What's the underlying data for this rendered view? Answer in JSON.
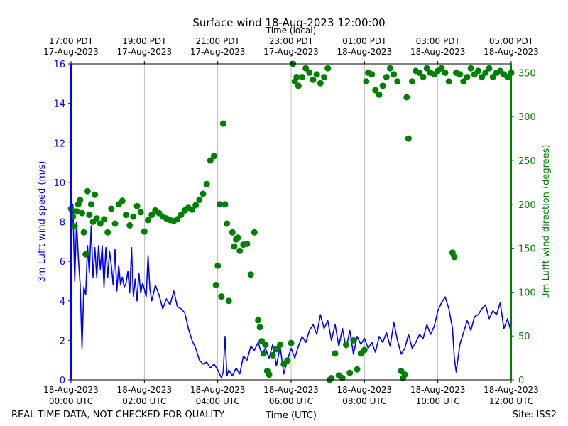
{
  "chart_data": {
    "type": "line",
    "title": "Surface wind 18-Aug-2023 12:00:00",
    "top_axis_label": "Time (local)",
    "bottom_axis_label": "Time (UTC)",
    "footer_left": "REAL TIME DATA, NOT CHECKED FOR QUALITY",
    "footer_right": "Site: ISS2",
    "x_range_hours_utc": [
      0,
      12
    ],
    "x_ticks_utc": [
      {
        "hour": 0,
        "line1": "18-Aug-2023",
        "line2": "00:00 UTC"
      },
      {
        "hour": 2,
        "line1": "18-Aug-2023",
        "line2": "02:00 UTC"
      },
      {
        "hour": 4,
        "line1": "18-Aug-2023",
        "line2": "04:00 UTC"
      },
      {
        "hour": 6,
        "line1": "18-Aug-2023",
        "line2": "06:00 UTC"
      },
      {
        "hour": 8,
        "line1": "18-Aug-2023",
        "line2": "08:00 UTC"
      },
      {
        "hour": 10,
        "line1": "18-Aug-2023",
        "line2": "10:00 UTC"
      },
      {
        "hour": 12,
        "line1": "18-Aug-2023",
        "line2": "12:00 UTC"
      }
    ],
    "x_ticks_local": [
      {
        "hour": 0,
        "line1": "17:00 PDT",
        "line2": "17-Aug-2023"
      },
      {
        "hour": 2,
        "line1": "19:00 PDT",
        "line2": "17-Aug-2023"
      },
      {
        "hour": 4,
        "line1": "21:00 PDT",
        "line2": "17-Aug-2023"
      },
      {
        "hour": 6,
        "line1": "23:00 PDT",
        "line2": "17-Aug-2023"
      },
      {
        "hour": 8,
        "line1": "01:00 PDT",
        "line2": "18-Aug-2023"
      },
      {
        "hour": 10,
        "line1": "03:00 PDT",
        "line2": "18-Aug-2023"
      },
      {
        "hour": 12,
        "line1": "05:00 PDT",
        "line2": "18-Aug-2023"
      }
    ],
    "left_axis": {
      "label": "3m Lufft wind speed (m/s)",
      "range": [
        0,
        16
      ],
      "ticks": [
        "0",
        "2",
        "4",
        "6",
        "8",
        "10",
        "12",
        "14",
        "16"
      ],
      "color": "#0000ff"
    },
    "right_axis": {
      "label": "3m Lufft wind direction (degrees)",
      "range": [
        0,
        360
      ],
      "ticks": [
        "0",
        "50",
        "100",
        "150",
        "200",
        "250",
        "300",
        "350"
      ],
      "color": "#008000"
    },
    "series": [
      {
        "name": "3m Lufft wind speed",
        "style": "line",
        "color": "#0000ff",
        "axis": "left",
        "x_hours": [
          0,
          0.05,
          0.1,
          0.15,
          0.2,
          0.25,
          0.3,
          0.35,
          0.4,
          0.45,
          0.5,
          0.55,
          0.6,
          0.65,
          0.7,
          0.75,
          0.8,
          0.85,
          0.9,
          0.95,
          1.0,
          1.05,
          1.1,
          1.15,
          1.2,
          1.25,
          1.3,
          1.35,
          1.4,
          1.45,
          1.5,
          1.55,
          1.6,
          1.65,
          1.7,
          1.75,
          1.8,
          1.85,
          1.9,
          1.95,
          2.0,
          2.05,
          2.1,
          2.15,
          2.2,
          2.3,
          2.4,
          2.5,
          2.6,
          2.7,
          2.8,
          2.9,
          3.0,
          3.1,
          3.2,
          3.3,
          3.4,
          3.5,
          3.6,
          3.7,
          3.8,
          3.9,
          4.0,
          4.1,
          4.15,
          4.2,
          4.25,
          4.3,
          4.4,
          4.5,
          4.6,
          4.7,
          4.8,
          4.9,
          5.0,
          5.1,
          5.2,
          5.3,
          5.4,
          5.5,
          5.6,
          5.7,
          5.8,
          5.9,
          6.0,
          6.1,
          6.2,
          6.3,
          6.4,
          6.5,
          6.6,
          6.7,
          6.8,
          6.9,
          7.0,
          7.1,
          7.2,
          7.3,
          7.4,
          7.5,
          7.6,
          7.7,
          7.8,
          7.9,
          8.0,
          8.1,
          8.2,
          8.3,
          8.4,
          8.5,
          8.6,
          8.7,
          8.8,
          8.9,
          9.0,
          9.1,
          9.2,
          9.3,
          9.4,
          9.5,
          9.6,
          9.7,
          9.8,
          9.9,
          10.0,
          10.1,
          10.2,
          10.3,
          10.4,
          10.45,
          10.5,
          10.6,
          10.7,
          10.8,
          10.9,
          11.0,
          11.1,
          11.2,
          11.3,
          11.4,
          11.5,
          11.6,
          11.7,
          11.8,
          11.9,
          12.0
        ],
        "values": [
          6.8,
          8.9,
          5.0,
          8.0,
          6.2,
          4.8,
          1.6,
          4.7,
          4.3,
          6.8,
          5.4,
          7.8,
          5.2,
          6.7,
          5.2,
          6.8,
          5.6,
          6.8,
          4.7,
          6.7,
          5.2,
          6.5,
          5.8,
          4.8,
          6.6,
          4.5,
          5.8,
          4.8,
          5.2,
          4.7,
          4.9,
          5.5,
          4.4,
          6.7,
          4.2,
          5.1,
          4.0,
          5.4,
          4.4,
          4.9,
          4.6,
          4.2,
          6.3,
          4.6,
          4.0,
          4.8,
          4.3,
          3.6,
          4.1,
          3.8,
          4.5,
          3.7,
          3.6,
          3.4,
          2.6,
          2.0,
          1.6,
          1.0,
          0.8,
          0.9,
          0.6,
          0.8,
          0.5,
          0.1,
          0.4,
          2.2,
          0.2,
          0.5,
          0.2,
          0.6,
          0.3,
          1.2,
          1.0,
          1.7,
          1.5,
          1.9,
          1.3,
          1.6,
          1.1,
          1.8,
          0.7,
          1.7,
          0.3,
          1.0,
          1.6,
          1.1,
          1.7,
          2.2,
          1.9,
          2.5,
          2.8,
          2.3,
          3.3,
          2.6,
          3.0,
          2.0,
          2.8,
          1.7,
          2.6,
          1.6,
          2.5,
          1.3,
          2.2,
          1.8,
          2.1,
          1.6,
          1.9,
          1.4,
          2.2,
          1.9,
          2.4,
          1.7,
          2.9,
          2.0,
          1.3,
          1.6,
          2.3,
          1.6,
          1.9,
          2.3,
          2.1,
          2.8,
          2.3,
          2.7,
          3.5,
          3.9,
          4.2,
          3.6,
          2.6,
          1.1,
          0.4,
          1.8,
          2.4,
          3.0,
          2.5,
          3.2,
          3.3,
          3.6,
          3.8,
          3.1,
          3.5,
          3.3,
          3.9,
          2.6,
          3.1,
          2.4
        ]
      },
      {
        "name": "3m Lufft wind direction",
        "style": "scatter",
        "color": "#008000",
        "axis": "right",
        "x_hours": [
          0,
          0.05,
          0.1,
          0.15,
          0.2,
          0.25,
          0.3,
          0.35,
          0.4,
          0.45,
          0.5,
          0.55,
          0.6,
          0.65,
          0.7,
          0.8,
          0.9,
          1.0,
          1.1,
          1.2,
          1.3,
          1.4,
          1.5,
          1.6,
          1.7,
          1.8,
          1.9,
          2.0,
          2.1,
          2.2,
          2.3,
          2.4,
          2.5,
          2.6,
          2.7,
          2.8,
          2.9,
          3.0,
          3.1,
          3.2,
          3.3,
          3.4,
          3.5,
          3.6,
          3.7,
          3.8,
          3.9,
          3.95,
          4.0,
          4.05,
          4.1,
          4.15,
          4.2,
          4.25,
          4.3,
          4.4,
          4.45,
          4.5,
          4.55,
          4.6,
          4.7,
          4.8,
          4.9,
          5.0,
          5.1,
          5.15,
          5.2,
          5.25,
          5.3,
          5.35,
          5.4,
          5.5,
          5.6,
          5.7,
          5.8,
          5.9,
          6.0,
          6.05,
          6.1,
          6.15,
          6.2,
          6.3,
          6.4,
          6.5,
          6.6,
          6.7,
          6.8,
          6.9,
          7.0,
          7.05,
          7.1,
          7.2,
          7.3,
          7.4,
          7.5,
          7.6,
          7.7,
          7.8,
          7.9,
          8.0,
          8.05,
          8.1,
          8.2,
          8.3,
          8.4,
          8.5,
          8.6,
          8.7,
          8.8,
          8.9,
          9.0,
          9.05,
          9.1,
          9.15,
          9.2,
          9.3,
          9.4,
          9.5,
          9.6,
          9.7,
          9.8,
          9.9,
          10.0,
          10.1,
          10.2,
          10.3,
          10.4,
          10.45,
          10.5,
          10.6,
          10.7,
          10.8,
          10.9,
          11.0,
          11.1,
          11.2,
          11.3,
          11.4,
          11.5,
          11.6,
          11.7,
          11.8,
          11.9,
          12.0
        ],
        "values": [
          195,
          186,
          175,
          192,
          200,
          205,
          190,
          168,
          143,
          215,
          188,
          200,
          180,
          211,
          184,
          178,
          183,
          168,
          195,
          178,
          200,
          204,
          188,
          176,
          186,
          198,
          191,
          169,
          182,
          188,
          193,
          190,
          186,
          184,
          182,
          181,
          183,
          188,
          193,
          196,
          194,
          199,
          205,
          212,
          223,
          250,
          255,
          108,
          130,
          200,
          95,
          292,
          200,
          178,
          90,
          168,
          152,
          160,
          162,
          147,
          154,
          155,
          120,
          168,
          68,
          60,
          44,
          30,
          40,
          10,
          6,
          28,
          35,
          40,
          18,
          22,
          42,
          360,
          340,
          345,
          335,
          345,
          355,
          350,
          342,
          348,
          338,
          345,
          355,
          0,
          2,
          30,
          5,
          2,
          40,
          8,
          45,
          12,
          30,
          34,
          340,
          350,
          348,
          330,
          325,
          335,
          345,
          355,
          348,
          340,
          10,
          2,
          6,
          322,
          275,
          340,
          352,
          350,
          345,
          355,
          350,
          348,
          352,
          355,
          350,
          340,
          145,
          140,
          350,
          348,
          340,
          345,
          355,
          348,
          352,
          345,
          350,
          355,
          345,
          350,
          352,
          348,
          345,
          350
        ]
      }
    ]
  }
}
